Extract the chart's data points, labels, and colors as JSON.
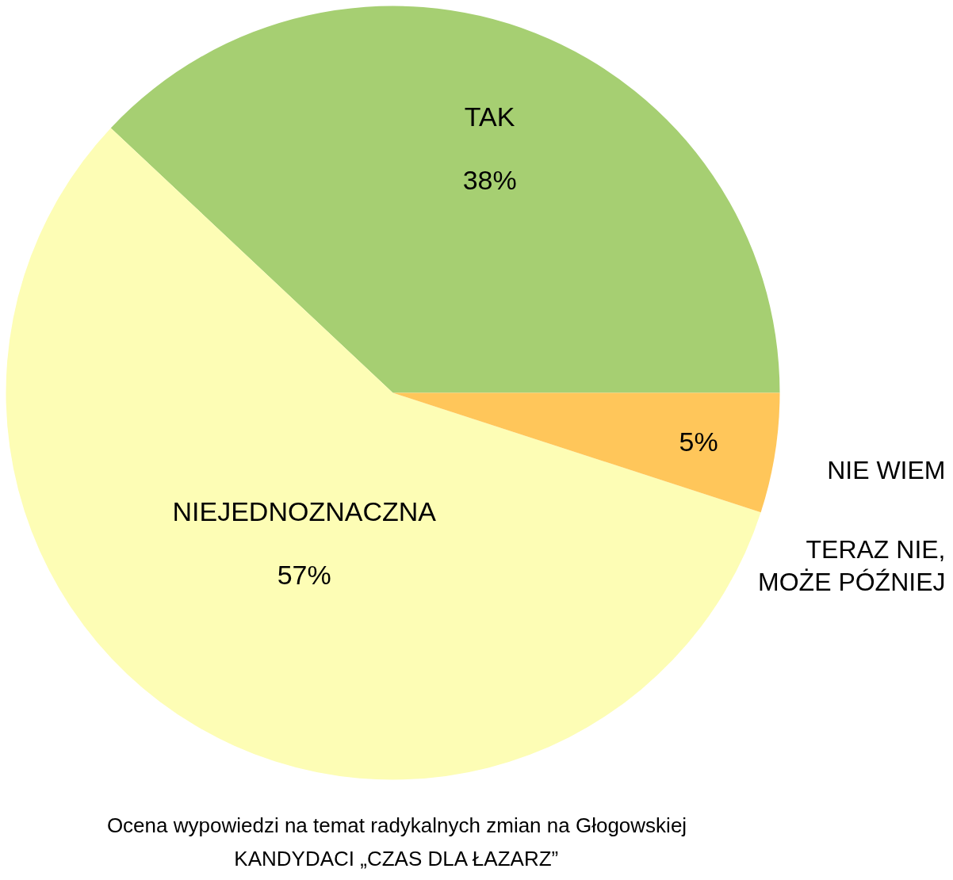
{
  "chart_data": {
    "type": "pie",
    "categories": [
      "TAK",
      "NIEJEDNOZNACZNA",
      "TERAZ NIE,\nMOŻE PÓŹNIEJ",
      "NIE WIEM"
    ],
    "values": [
      38,
      57,
      0,
      5
    ],
    "colors": [
      "#a6cf72",
      "#fdfdb5",
      "#f5a623",
      "#ffc65a"
    ],
    "value_labels": [
      "38%",
      "57%",
      null,
      "5%"
    ],
    "title": "Ocena wypowiedzi na temat radykalnych zmian na Głogowskiej",
    "subtitle": "KANDYDACI „CZAS DLA ŁAZARZ”"
  }
}
